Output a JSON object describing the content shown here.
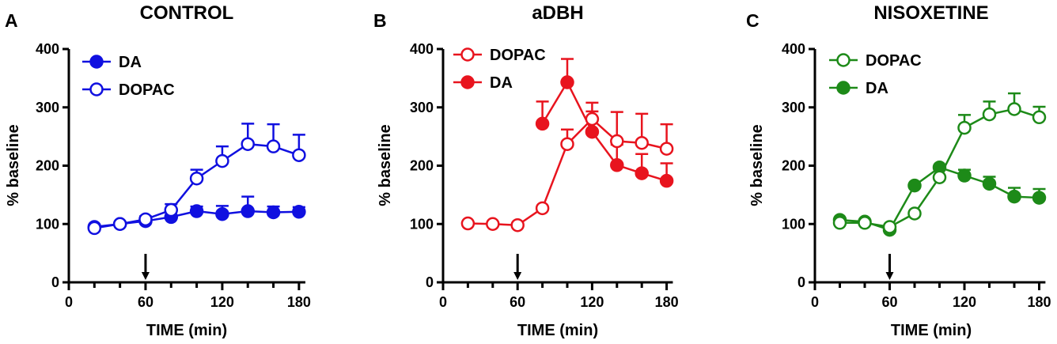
{
  "chart_data": [
    {
      "panel_label": "A",
      "type": "line",
      "title": "CONTROL",
      "xlabel": "TIME (min)",
      "ylabel": "% baseline",
      "xlim": [
        0,
        185
      ],
      "ylim": [
        0,
        400
      ],
      "xticks": [
        0,
        60,
        120,
        180
      ],
      "yticks": [
        0,
        100,
        200,
        300,
        400
      ],
      "x_tick_labels": [
        "0",
        "60",
        "120",
        "180"
      ],
      "y_tick_labels": [
        "0",
        "100",
        "200",
        "300",
        "400"
      ],
      "arrow_at_x": 60,
      "color": "#1010e0",
      "legend_position": "top-left",
      "series": [
        {
          "name": "DA",
          "marker": "filled",
          "x": [
            20,
            40,
            60,
            80,
            100,
            120,
            140,
            160,
            180
          ],
          "y": [
            95,
            100,
            105,
            112,
            122,
            117,
            122,
            120,
            121
          ],
          "err": [
            0,
            0,
            8,
            12,
            8,
            14,
            25,
            10,
            8
          ]
        },
        {
          "name": "DOPAC",
          "marker": "open",
          "x": [
            20,
            40,
            60,
            80,
            100,
            120,
            140,
            160,
            180
          ],
          "y": [
            93,
            100,
            108,
            124,
            178,
            208,
            237,
            233,
            218
          ],
          "err": [
            0,
            0,
            0,
            10,
            15,
            25,
            35,
            38,
            35
          ]
        }
      ]
    },
    {
      "panel_label": "B",
      "type": "line",
      "title": "aDBH",
      "xlabel": "TIME (min)",
      "ylabel": "% baseline",
      "xlim": [
        0,
        185
      ],
      "ylim": [
        0,
        400
      ],
      "xticks": [
        0,
        60,
        120,
        180
      ],
      "yticks": [
        0,
        100,
        200,
        300,
        400
      ],
      "x_tick_labels": [
        "0",
        "60",
        "120",
        "180"
      ],
      "y_tick_labels": [
        "0",
        "100",
        "200",
        "300",
        "400"
      ],
      "arrow_at_x": 60,
      "color": "#e8141e",
      "legend_position": "top-left",
      "series": [
        {
          "name": "DOPAC",
          "marker": "open",
          "x": [
            20,
            40,
            60,
            80,
            100,
            120,
            140,
            160,
            180
          ],
          "y": [
            101,
            100,
            98,
            127,
            237,
            280,
            242,
            239,
            229
          ],
          "err": [
            0,
            0,
            0,
            0,
            25,
            28,
            50,
            50,
            42
          ]
        },
        {
          "name": "DA",
          "marker": "filled",
          "x": [
            80,
            100,
            120,
            140,
            160,
            180
          ],
          "y": [
            272,
            343,
            258,
            201,
            187,
            174
          ],
          "err": [
            38,
            40,
            35,
            35,
            33,
            30
          ]
        }
      ]
    },
    {
      "panel_label": "C",
      "type": "line",
      "title": "NISOXETINE",
      "xlabel": "TIME (min)",
      "ylabel": "% baseline",
      "xlim": [
        0,
        185
      ],
      "ylim": [
        0,
        400
      ],
      "xticks": [
        0,
        60,
        120,
        180
      ],
      "yticks": [
        0,
        100,
        200,
        300,
        400
      ],
      "x_tick_labels": [
        "0",
        "60",
        "120",
        "180"
      ],
      "y_tick_labels": [
        "0",
        "100",
        "200",
        "300",
        "400"
      ],
      "arrow_at_x": 60,
      "color": "#1d8a18",
      "legend_position": "top-left",
      "series": [
        {
          "name": "DOPAC",
          "marker": "open",
          "x": [
            20,
            40,
            60,
            80,
            100,
            120,
            140,
            160,
            180
          ],
          "y": [
            102,
            102,
            95,
            118,
            180,
            265,
            288,
            297,
            283
          ],
          "err": [
            0,
            0,
            0,
            0,
            0,
            22,
            22,
            27,
            18
          ]
        },
        {
          "name": "DA",
          "marker": "filled",
          "x": [
            20,
            40,
            60,
            80,
            100,
            120,
            140,
            160,
            180
          ],
          "y": [
            107,
            104,
            90,
            166,
            197,
            183,
            169,
            147,
            145
          ],
          "err": [
            0,
            0,
            8,
            0,
            0,
            10,
            12,
            15,
            15
          ]
        }
      ]
    }
  ]
}
